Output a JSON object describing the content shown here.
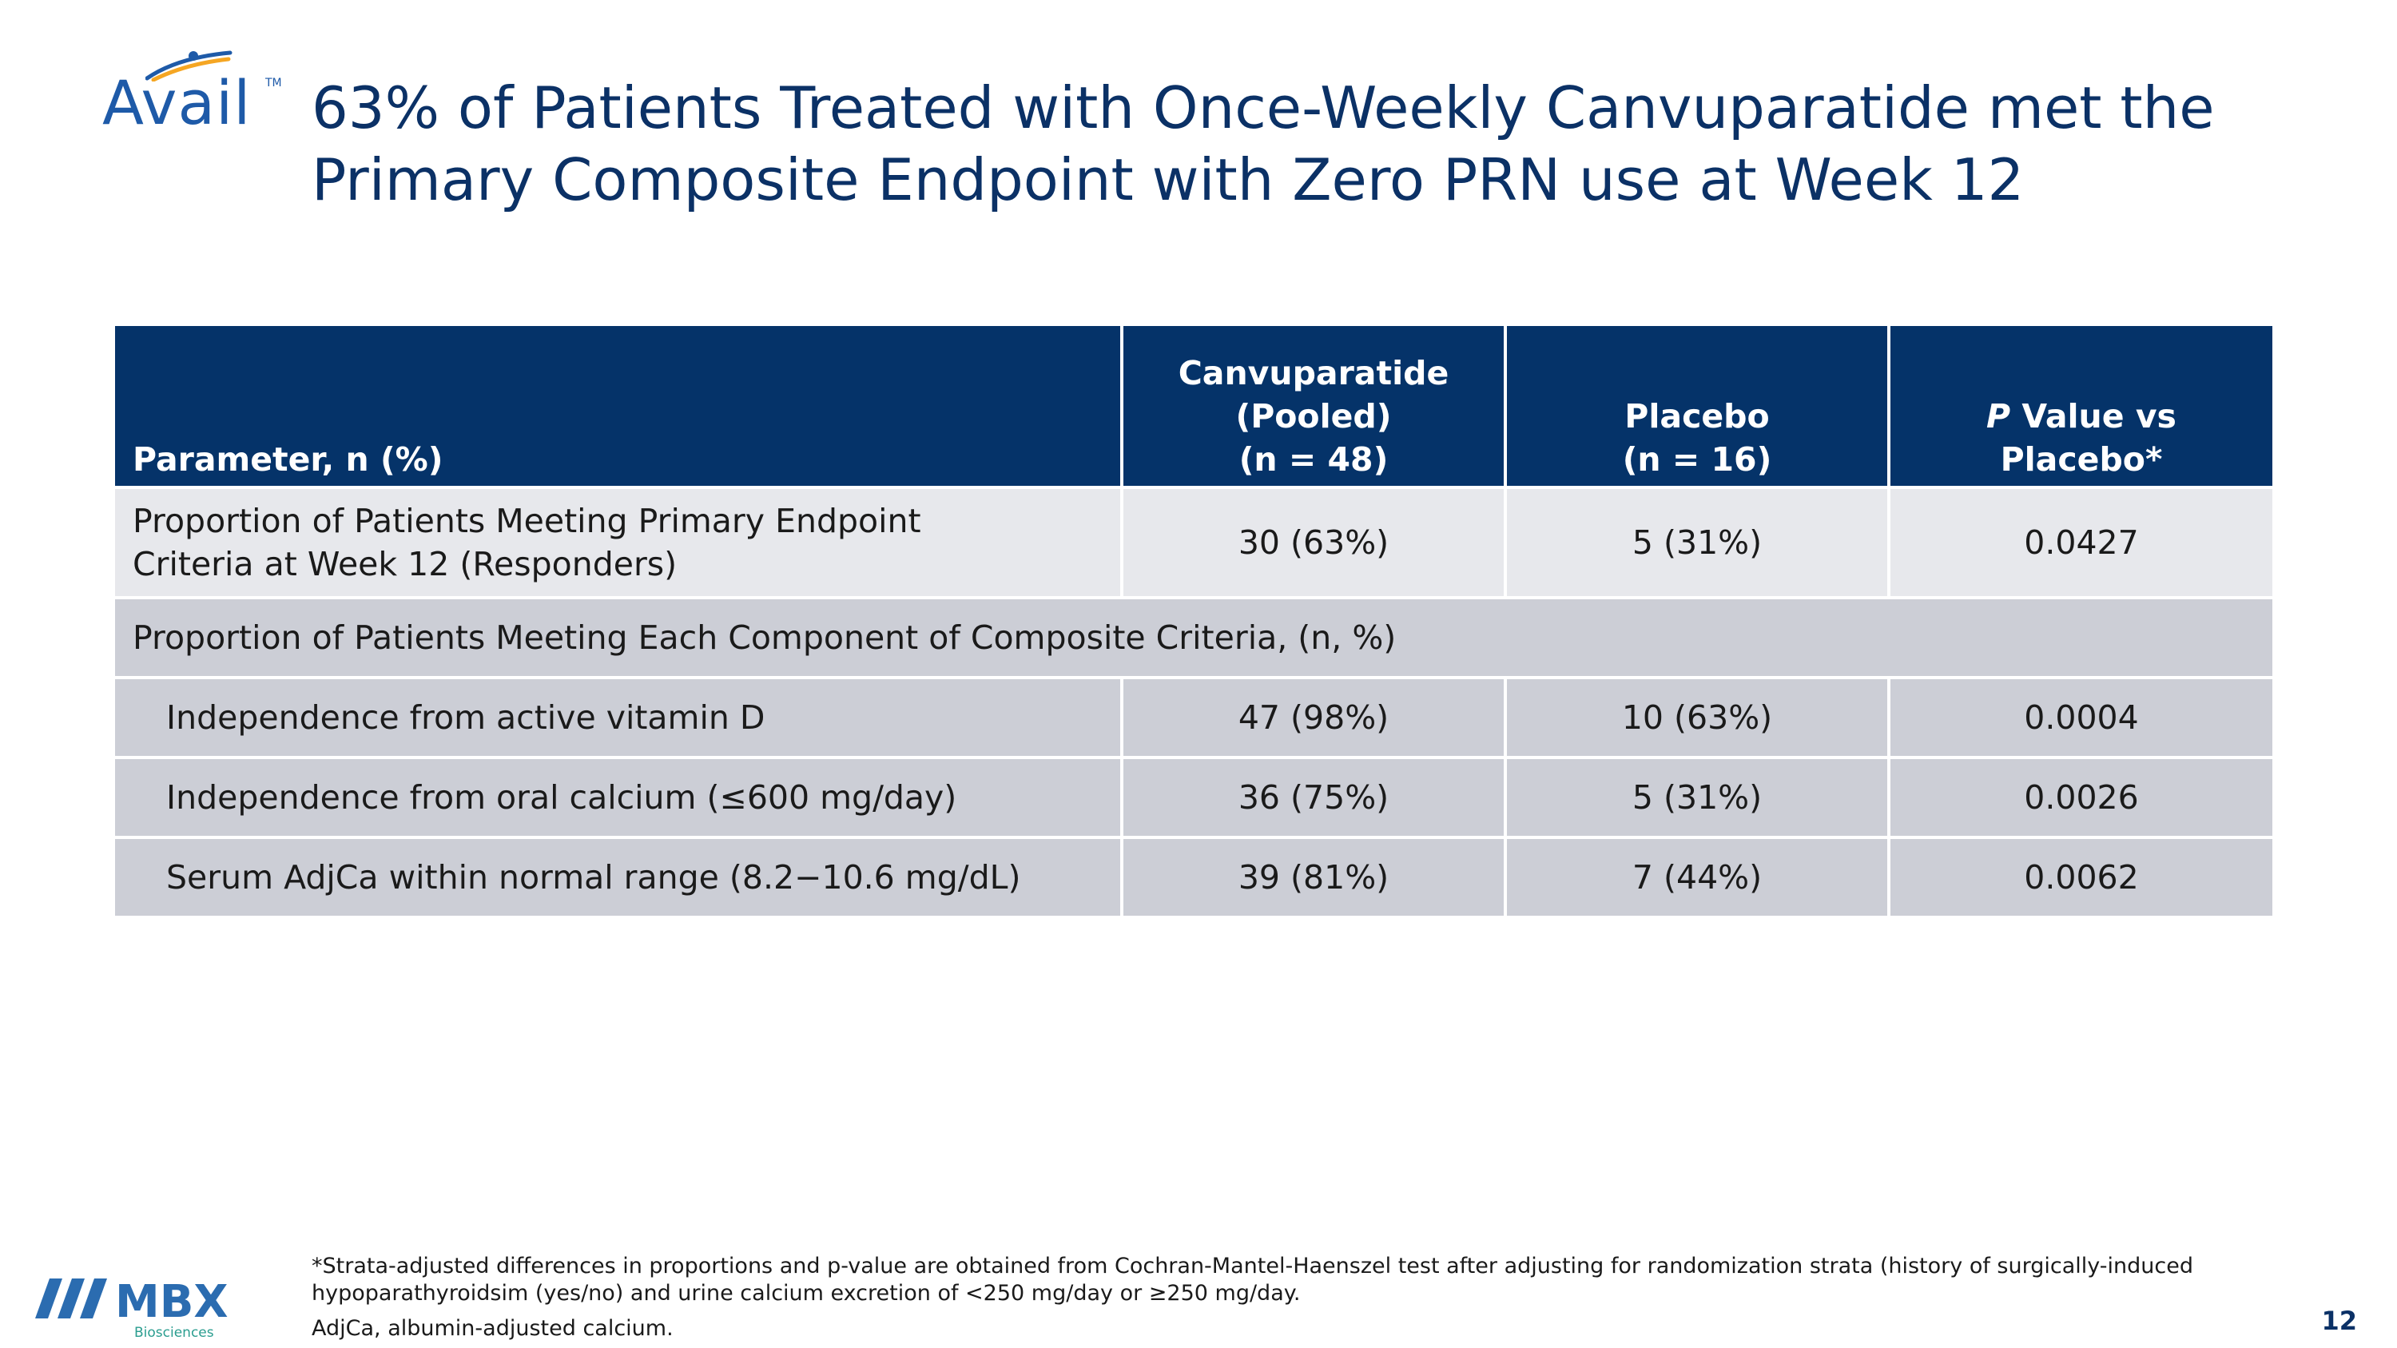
{
  "logo": {
    "brand": "Avail",
    "tm": "TM"
  },
  "title": {
    "line1": "63% of Patients Treated with Once-Weekly Canvuparatide met the",
    "line2": "Primary Composite Endpoint with Zero PRN use at Week 12"
  },
  "table": {
    "headers": {
      "parameter": "Parameter, n (%)",
      "canvuparatide": [
        "Canvuparatide",
        "(Pooled)",
        "(n = 48)"
      ],
      "placebo": [
        "Placebo",
        "(n = 16)"
      ],
      "pvalue_italic": "P",
      "pvalue_rest": " Value vs",
      "pvalue_line2": "Placebo*"
    },
    "primary_row": {
      "label_line1": "Proportion of Patients Meeting Primary Endpoint",
      "label_line2": "Criteria at Week 12 (Responders)",
      "canvuparatide": "30 (63%)",
      "placebo": "5 (31%)",
      "pvalue": "0.0427"
    },
    "section_label": "Proportion of Patients Meeting Each Component of Composite Criteria, (n, %)",
    "component_rows": [
      {
        "label": "Independence from active vitamin D",
        "canvuparatide": "47 (98%)",
        "placebo": "10 (63%)",
        "pvalue": "0.0004"
      },
      {
        "label": "Independence from oral calcium (≤600 mg/day)",
        "canvuparatide": "36 (75%)",
        "placebo": "5 (31%)",
        "pvalue": "0.0026"
      },
      {
        "label": "Serum AdjCa within normal range (8.2−10.6 mg/dL)",
        "canvuparatide": "39 (81%)",
        "placebo": "7 (44%)",
        "pvalue": "0.0062"
      }
    ]
  },
  "footer": {
    "mbx_logo": {
      "name": "MBX",
      "sub": "Biosciences"
    },
    "footnote_line1": "*Strata-adjusted differences in proportions and p-value are obtained from Cochran-Mantel-Haenszel test after adjusting for randomization strata (history of surgically-induced",
    "footnote_line2": "hypoparathyroidsim (yes/no) and urine calcium excretion of <250 mg/day or ≥250 mg/day.",
    "abbreviation": "AdjCa, albumin-adjusted calcium.",
    "page_number": "12"
  },
  "colors": {
    "title": "#0b3166",
    "header_bg": "#053369",
    "row_light": "#e7e8ec",
    "row_dark": "#ccced6",
    "avail_blue": "#1e5aa8",
    "avail_orange": "#f5a623",
    "mbx_blue": "#2b6cb0",
    "mbx_teal": "#2a9d8f"
  }
}
